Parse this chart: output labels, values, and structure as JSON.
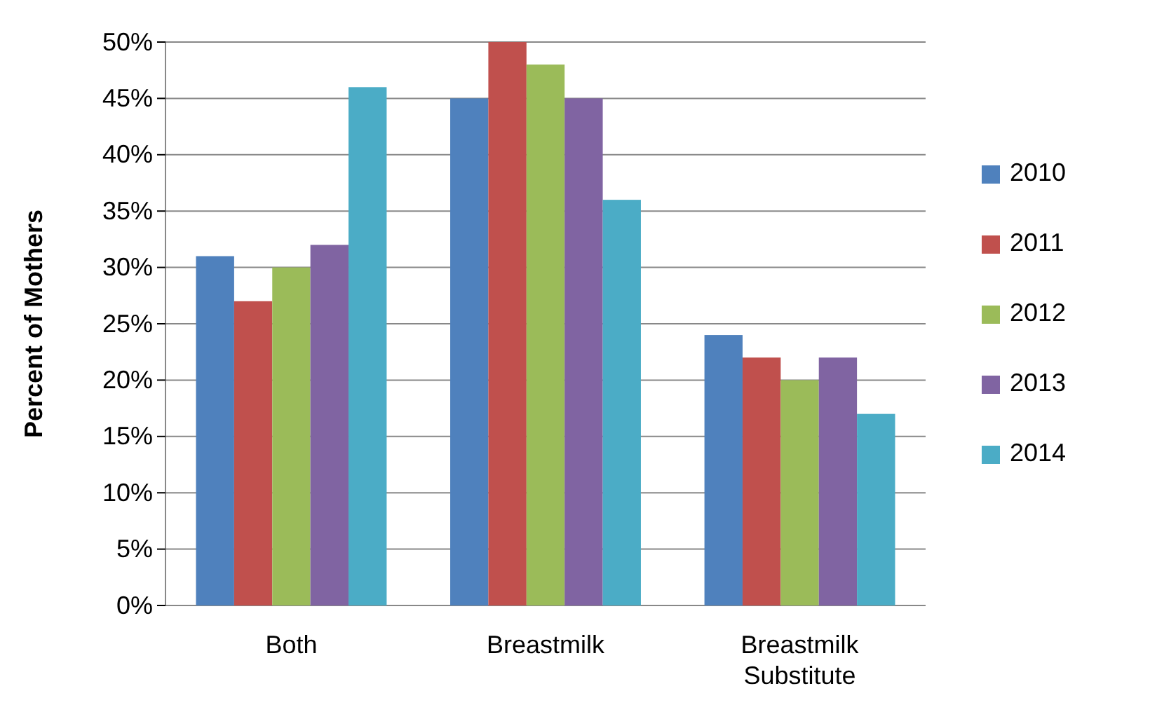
{
  "chart_data": {
    "type": "bar",
    "ylabel": "Percent of Mothers",
    "categories": [
      "Both",
      "Breastmilk",
      "Breastmilk Substitute"
    ],
    "series": [
      {
        "name": "2010",
        "color": "#4f81bd",
        "values": [
          31,
          45,
          24
        ]
      },
      {
        "name": "2011",
        "color": "#c0504d",
        "values": [
          27,
          50,
          22
        ]
      },
      {
        "name": "2012",
        "color": "#9bbb59",
        "values": [
          30,
          48,
          20
        ]
      },
      {
        "name": "2013",
        "color": "#8064a2",
        "values": [
          32,
          45,
          22
        ]
      },
      {
        "name": "2014",
        "color": "#4bacc6",
        "values": [
          46,
          36,
          17
        ]
      }
    ],
    "ylim": [
      0,
      50
    ],
    "yticks": [
      {
        "value": 0,
        "label": "0%"
      },
      {
        "value": 5,
        "label": "5%"
      },
      {
        "value": 10,
        "label": "10%"
      },
      {
        "value": 15,
        "label": "15%"
      },
      {
        "value": 20,
        "label": "20%"
      },
      {
        "value": 25,
        "label": "25%"
      },
      {
        "value": 30,
        "label": "30%"
      },
      {
        "value": 35,
        "label": "35%"
      },
      {
        "value": 40,
        "label": "40%"
      },
      {
        "value": 45,
        "label": "45%"
      },
      {
        "value": 50,
        "label": "50%"
      }
    ],
    "grid": "y",
    "legend": "right"
  }
}
